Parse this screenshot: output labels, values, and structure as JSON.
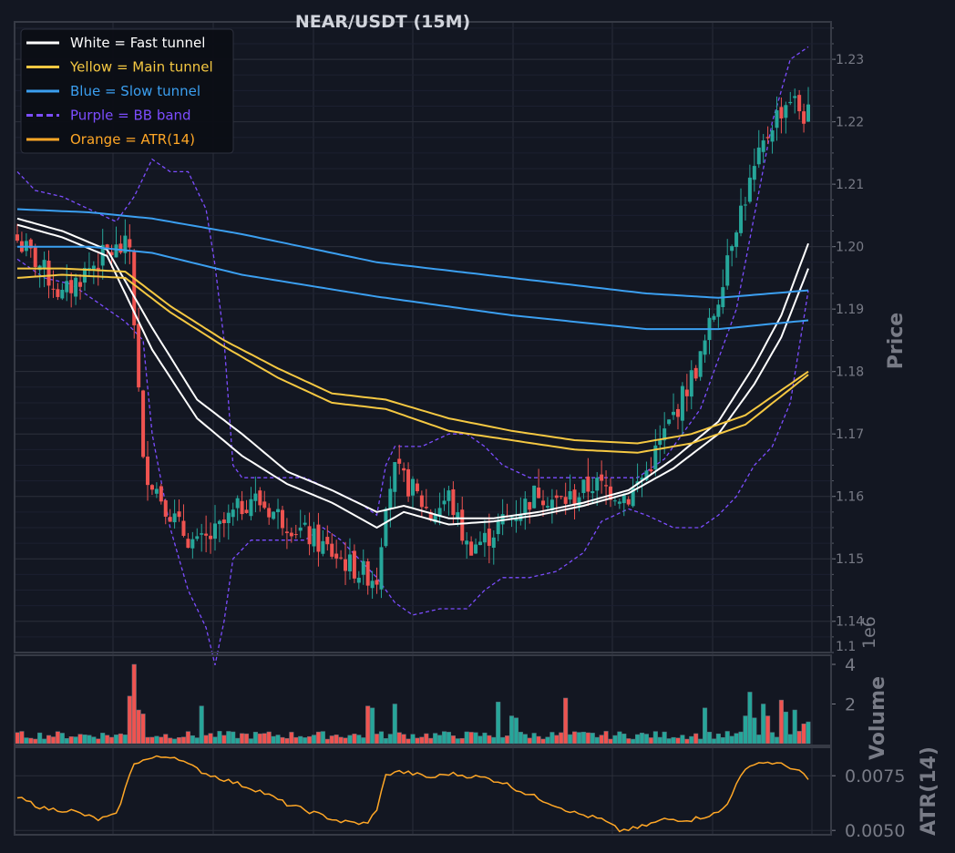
{
  "chart_data": [
    {
      "type": "candlestick",
      "title": "NEAR/USDT (15M)",
      "ylabel": "Price",
      "ylim": [
        1.135,
        1.236
      ],
      "yticks": [
        1.14,
        1.15,
        1.16,
        1.17,
        1.18,
        1.19,
        1.2,
        1.21,
        1.22,
        1.23
      ],
      "ytick_labels": [
        "1.14",
        "1.15",
        "1.16",
        "1.17",
        "1.18",
        "1.19",
        "1.20",
        "1.21",
        "1.22",
        "1.23"
      ],
      "bottom_tick_label": "1.1",
      "grid": true,
      "legend_position": "top-left",
      "legend": [
        {
          "label": "White = Fast tunnel",
          "color": "#ffffff",
          "style": "solid"
        },
        {
          "label": "Yellow = Main tunnel",
          "color": "#f5c842",
          "style": "solid"
        },
        {
          "label": "Blue = Slow tunnel",
          "color": "#3b9ff0",
          "style": "solid"
        },
        {
          "label": "Purple = BB band",
          "color": "#7c4dff",
          "style": "dashed"
        },
        {
          "label": "Orange = ATR(14)",
          "color": "#ffa726",
          "style": "solid"
        }
      ],
      "colors": {
        "up": "#26a69a",
        "down": "#ef5350"
      },
      "candle_close_anchors": [
        [
          0,
          1.201
        ],
        [
          5,
          1.197
        ],
        [
          10,
          1.192
        ],
        [
          15,
          1.196
        ],
        [
          20,
          1.199
        ],
        [
          25,
          1.2
        ],
        [
          28,
          1.165
        ],
        [
          32,
          1.16
        ],
        [
          36,
          1.155
        ],
        [
          40,
          1.152
        ],
        [
          44,
          1.154
        ],
        [
          48,
          1.157
        ],
        [
          52,
          1.16
        ],
        [
          56,
          1.158
        ],
        [
          60,
          1.156
        ],
        [
          64,
          1.154
        ],
        [
          68,
          1.152
        ],
        [
          72,
          1.15
        ],
        [
          76,
          1.148
        ],
        [
          80,
          1.147
        ],
        [
          82,
          1.16
        ],
        [
          84,
          1.164
        ],
        [
          88,
          1.161
        ],
        [
          92,
          1.157
        ],
        [
          96,
          1.16
        ],
        [
          100,
          1.152
        ],
        [
          104,
          1.153
        ],
        [
          108,
          1.156
        ],
        [
          112,
          1.158
        ],
        [
          116,
          1.161
        ],
        [
          120,
          1.159
        ],
        [
          124,
          1.16
        ],
        [
          128,
          1.162
        ],
        [
          132,
          1.161
        ],
        [
          136,
          1.16
        ],
        [
          140,
          1.164
        ],
        [
          144,
          1.17
        ],
        [
          148,
          1.176
        ],
        [
          152,
          1.182
        ],
        [
          156,
          1.192
        ],
        [
          158,
          1.199
        ],
        [
          160,
          1.204
        ],
        [
          164,
          1.212
        ],
        [
          168,
          1.22
        ],
        [
          172,
          1.224
        ],
        [
          175,
          1.221
        ]
      ],
      "tunnels": [
        {
          "name": "White = Fast tunnel",
          "color": "#ffffff",
          "upper": [
            [
              0,
              1.2045
            ],
            [
              10,
              1.2025
            ],
            [
              20,
              1.1995
            ],
            [
              30,
              1.187
            ],
            [
              40,
              1.1755
            ],
            [
              50,
              1.17
            ],
            [
              60,
              1.164
            ],
            [
              70,
              1.161
            ],
            [
              80,
              1.1575
            ],
            [
              86,
              1.1585
            ],
            [
              96,
              1.1565
            ],
            [
              106,
              1.1565
            ],
            [
              116,
              1.1575
            ],
            [
              126,
              1.159
            ],
            [
              136,
              1.161
            ],
            [
              146,
              1.166
            ],
            [
              156,
              1.172
            ],
            [
              164,
              1.181
            ],
            [
              170,
              1.189
            ],
            [
              176,
              1.2005
            ]
          ],
          "lower": [
            [
              0,
              1.2035
            ],
            [
              10,
              1.2015
            ],
            [
              20,
              1.1985
            ],
            [
              30,
              1.1835
            ],
            [
              40,
              1.1725
            ],
            [
              50,
              1.1665
            ],
            [
              60,
              1.162
            ],
            [
              70,
              1.159
            ],
            [
              80,
              1.155
            ],
            [
              86,
              1.1575
            ],
            [
              96,
              1.1555
            ],
            [
              106,
              1.156
            ],
            [
              116,
              1.157
            ],
            [
              126,
              1.1585
            ],
            [
              136,
              1.1605
            ],
            [
              146,
              1.1645
            ],
            [
              156,
              1.17
            ],
            [
              164,
              1.178
            ],
            [
              170,
              1.1855
            ],
            [
              176,
              1.1965
            ]
          ]
        },
        {
          "name": "Yellow = Main tunnel",
          "color": "#f5c842",
          "upper": [
            [
              0,
              1.1965
            ],
            [
              10,
              1.1965
            ],
            [
              24,
              1.196
            ],
            [
              34,
              1.1905
            ],
            [
              46,
              1.185
            ],
            [
              58,
              1.1805
            ],
            [
              70,
              1.1765
            ],
            [
              82,
              1.1755
            ],
            [
              96,
              1.1725
            ],
            [
              110,
              1.1705
            ],
            [
              124,
              1.169
            ],
            [
              138,
              1.1685
            ],
            [
              150,
              1.17
            ],
            [
              162,
              1.173
            ],
            [
              176,
              1.18
            ]
          ],
          "lower": [
            [
              0,
              1.195
            ],
            [
              10,
              1.1955
            ],
            [
              24,
              1.195
            ],
            [
              34,
              1.1895
            ],
            [
              46,
              1.184
            ],
            [
              58,
              1.179
            ],
            [
              70,
              1.175
            ],
            [
              82,
              1.174
            ],
            [
              96,
              1.1705
            ],
            [
              110,
              1.169
            ],
            [
              124,
              1.1675
            ],
            [
              138,
              1.167
            ],
            [
              150,
              1.1685
            ],
            [
              162,
              1.1715
            ],
            [
              176,
              1.1795
            ]
          ]
        },
        {
          "name": "Blue = Slow tunnel",
          "color": "#3b9ff0",
          "upper": [
            [
              0,
              1.206
            ],
            [
              16,
              1.2055
            ],
            [
              30,
              1.2045
            ],
            [
              50,
              1.202
            ],
            [
              80,
              1.1975
            ],
            [
              110,
              1.195
            ],
            [
              140,
              1.1925
            ],
            [
              156,
              1.1918
            ],
            [
              176,
              1.193
            ]
          ],
          "lower": [
            [
              0,
              1.2
            ],
            [
              16,
              1.2
            ],
            [
              30,
              1.199
            ],
            [
              50,
              1.1955
            ],
            [
              80,
              1.192
            ],
            [
              110,
              1.189
            ],
            [
              140,
              1.1868
            ],
            [
              156,
              1.1868
            ],
            [
              176,
              1.1882
            ]
          ]
        }
      ],
      "bb_band": {
        "name": "Purple = BB band",
        "color": "#7c4dff",
        "upper": [
          [
            0,
            1.212
          ],
          [
            4,
            1.209
          ],
          [
            10,
            1.208
          ],
          [
            16,
            1.206
          ],
          [
            22,
            1.204
          ],
          [
            26,
            1.208
          ],
          [
            28,
            1.211
          ],
          [
            30,
            1.214
          ],
          [
            34,
            1.212
          ],
          [
            38,
            1.212
          ],
          [
            42,
            1.206
          ],
          [
            44,
            1.197
          ],
          [
            46,
            1.185
          ],
          [
            48,
            1.165
          ],
          [
            50,
            1.163
          ],
          [
            56,
            1.163
          ],
          [
            60,
            1.163
          ],
          [
            64,
            1.163
          ],
          [
            70,
            1.161
          ],
          [
            76,
            1.159
          ],
          [
            80,
            1.157
          ],
          [
            82,
            1.165
          ],
          [
            84,
            1.168
          ],
          [
            90,
            1.168
          ],
          [
            96,
            1.17
          ],
          [
            100,
            1.17
          ],
          [
            104,
            1.168
          ],
          [
            108,
            1.165
          ],
          [
            114,
            1.163
          ],
          [
            120,
            1.163
          ],
          [
            126,
            1.163
          ],
          [
            132,
            1.163
          ],
          [
            138,
            1.163
          ],
          [
            144,
            1.166
          ],
          [
            148,
            1.17
          ],
          [
            152,
            1.174
          ],
          [
            156,
            1.182
          ],
          [
            160,
            1.19
          ],
          [
            164,
            1.205
          ],
          [
            168,
            1.22
          ],
          [
            172,
            1.23
          ],
          [
            176,
            1.232
          ]
        ],
        "lower": [
          [
            0,
            1.198
          ],
          [
            6,
            1.195
          ],
          [
            12,
            1.194
          ],
          [
            18,
            1.191
          ],
          [
            24,
            1.188
          ],
          [
            28,
            1.185
          ],
          [
            30,
            1.17
          ],
          [
            34,
            1.155
          ],
          [
            38,
            1.145
          ],
          [
            42,
            1.139
          ],
          [
            44,
            1.133
          ],
          [
            46,
            1.14
          ],
          [
            48,
            1.15
          ],
          [
            52,
            1.153
          ],
          [
            58,
            1.153
          ],
          [
            64,
            1.153
          ],
          [
            68,
            1.155
          ],
          [
            72,
            1.153
          ],
          [
            76,
            1.15
          ],
          [
            80,
            1.147
          ],
          [
            84,
            1.143
          ],
          [
            88,
            1.141
          ],
          [
            94,
            1.142
          ],
          [
            100,
            1.142
          ],
          [
            104,
            1.145
          ],
          [
            108,
            1.147
          ],
          [
            114,
            1.147
          ],
          [
            120,
            1.148
          ],
          [
            126,
            1.151
          ],
          [
            130,
            1.156
          ],
          [
            136,
            1.158
          ],
          [
            140,
            1.157
          ],
          [
            146,
            1.155
          ],
          [
            152,
            1.155
          ],
          [
            156,
            1.157
          ],
          [
            160,
            1.16
          ],
          [
            164,
            1.165
          ],
          [
            168,
            1.168
          ],
          [
            172,
            1.175
          ],
          [
            176,
            1.193
          ]
        ]
      }
    },
    {
      "type": "bar",
      "ylabel": "Volume",
      "scale_label": "1e6",
      "ylim": [
        0,
        4.0
      ],
      "yticks": [
        2,
        4
      ],
      "colors": {
        "up": "#26a69a",
        "down": "#ef5350"
      },
      "base_volume": 0.45,
      "volume_spikes": [
        [
          25,
          2.4
        ],
        [
          26,
          4.0
        ],
        [
          27,
          1.7
        ],
        [
          28,
          1.5
        ],
        [
          41,
          1.9
        ],
        [
          78,
          1.9
        ],
        [
          79,
          1.8
        ],
        [
          84,
          2.0
        ],
        [
          107,
          2.1
        ],
        [
          110,
          1.4
        ],
        [
          111,
          1.3
        ],
        [
          122,
          2.3
        ],
        [
          153,
          1.8
        ],
        [
          162,
          1.4
        ],
        [
          163,
          2.6
        ],
        [
          164,
          1.3
        ],
        [
          166,
          2.0
        ],
        [
          167,
          1.4
        ],
        [
          170,
          2.2
        ],
        [
          171,
          1.6
        ],
        [
          173,
          1.7
        ],
        [
          175,
          1.0
        ],
        [
          176,
          1.1
        ]
      ]
    },
    {
      "type": "line",
      "ylabel": "ATR(14)",
      "ylim": [
        0.0048,
        0.0088
      ],
      "yticks": [
        0.005,
        0.0075
      ],
      "ytick_labels": [
        "0.0050",
        "0.0075"
      ],
      "color": "#ffa726",
      "atr_anchors": [
        [
          0,
          0.0065
        ],
        [
          6,
          0.006
        ],
        [
          12,
          0.0059
        ],
        [
          18,
          0.0055
        ],
        [
          22,
          0.0057
        ],
        [
          24,
          0.0069
        ],
        [
          26,
          0.0081
        ],
        [
          30,
          0.0083
        ],
        [
          34,
          0.0084
        ],
        [
          36,
          0.0083
        ],
        [
          38,
          0.008
        ],
        [
          42,
          0.0076
        ],
        [
          48,
          0.0072
        ],
        [
          54,
          0.0068
        ],
        [
          60,
          0.0062
        ],
        [
          66,
          0.0058
        ],
        [
          72,
          0.0054
        ],
        [
          78,
          0.0053
        ],
        [
          80,
          0.006
        ],
        [
          82,
          0.0075
        ],
        [
          84,
          0.0077
        ],
        [
          88,
          0.0076
        ],
        [
          92,
          0.0074
        ],
        [
          96,
          0.0076
        ],
        [
          100,
          0.0075
        ],
        [
          104,
          0.0074
        ],
        [
          108,
          0.0072
        ],
        [
          112,
          0.0068
        ],
        [
          118,
          0.0063
        ],
        [
          124,
          0.0058
        ],
        [
          130,
          0.0055
        ],
        [
          134,
          0.005
        ],
        [
          138,
          0.0051
        ],
        [
          144,
          0.0055
        ],
        [
          150,
          0.0055
        ],
        [
          156,
          0.0058
        ],
        [
          158,
          0.0062
        ],
        [
          160,
          0.0072
        ],
        [
          162,
          0.0077
        ],
        [
          164,
          0.0081
        ],
        [
          168,
          0.0081
        ],
        [
          172,
          0.0079
        ],
        [
          174,
          0.0077
        ],
        [
          176,
          0.0073
        ]
      ]
    }
  ]
}
